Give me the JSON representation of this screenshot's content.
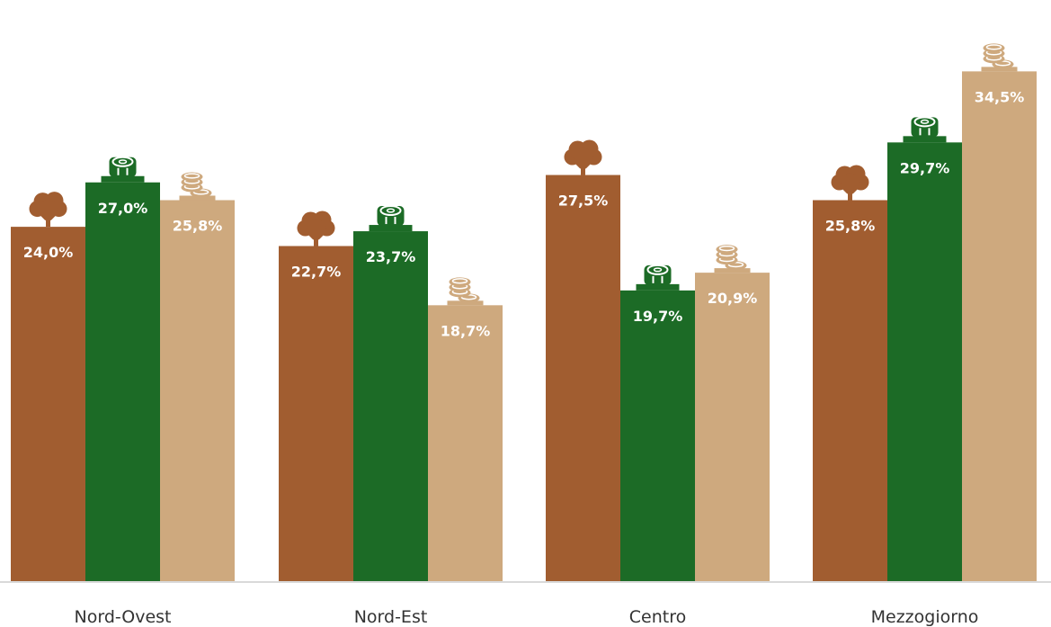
{
  "chart_data": {
    "type": "bar",
    "categories": [
      "Nord-Ovest",
      "Nord-Est",
      "Centro",
      "Mezzogiorno"
    ],
    "series": [
      {
        "values": [
          24.0,
          22.7,
          27.5,
          25.8
        ],
        "labels": [
          "24,0%",
          "22,7%",
          "27,5%",
          "25,8%"
        ],
        "color": "#A15D30",
        "icon": "tree-icon"
      },
      {
        "values": [
          27.0,
          23.7,
          19.7,
          29.7
        ],
        "labels": [
          "27,0%",
          "23,7%",
          "19,7%",
          "29,7%"
        ],
        "color": "#1C6B26",
        "icon": "log-icon"
      },
      {
        "values": [
          25.8,
          18.7,
          20.9,
          34.5
        ],
        "labels": [
          "25,8%",
          "18,7%",
          "20,9%",
          "34,5%"
        ],
        "color": "#CEA97E",
        "icon": "coins-icon"
      }
    ],
    "ylim": [
      0,
      37.5
    ],
    "grid": false,
    "legend": "none",
    "title": "",
    "xlabel": "",
    "ylabel": ""
  }
}
